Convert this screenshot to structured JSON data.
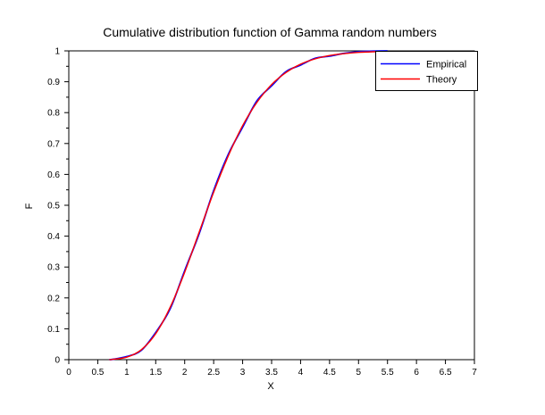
{
  "chart_data": {
    "type": "line",
    "title": "Cumulative distribution function of Gamma random numbers",
    "xlabel": "X",
    "ylabel": "F",
    "xlim": [
      0,
      7
    ],
    "ylim": [
      0,
      1
    ],
    "grid": false,
    "legend_position": "top-right",
    "axis_color": "#000000",
    "background_color": "#ffffff",
    "x_tick_values": [
      0,
      0.5,
      1,
      1.5,
      2,
      2.5,
      3,
      3.5,
      4,
      4.5,
      5,
      5.5,
      6,
      6.5,
      7
    ],
    "x_tick_labels": [
      "0",
      "0.5",
      "1",
      "1.5",
      "2",
      "2.5",
      "3",
      "3.5",
      "4",
      "4.5",
      "5",
      "5.5",
      "6",
      "6.5",
      "7"
    ],
    "y_tick_values": [
      0,
      0.1,
      0.2,
      0.3,
      0.4,
      0.5,
      0.6,
      0.7,
      0.8,
      0.9,
      1
    ],
    "y_tick_labels": [
      "0",
      "0.1",
      "0.2",
      "0.3",
      "0.4",
      "0.5",
      "0.6",
      "0.7",
      "0.8",
      "0.9",
      "1"
    ],
    "y_minor_tick_values": [
      0.05,
      0.15,
      0.25,
      0.35,
      0.45,
      0.55,
      0.65,
      0.75,
      0.85,
      0.95
    ],
    "x": [
      0.7,
      0.75,
      1.0,
      1.25,
      1.5,
      1.75,
      2.0,
      2.25,
      2.5,
      2.75,
      3.0,
      3.25,
      3.5,
      3.75,
      4.0,
      4.25,
      4.5,
      4.75,
      5.0,
      5.25,
      5.5
    ],
    "series": [
      {
        "name": "Empirical",
        "color": "#0000ff",
        "values": [
          0.0,
          0.001,
          0.01,
          0.03,
          0.088,
          0.165,
          0.288,
          0.408,
          0.547,
          0.664,
          0.753,
          0.839,
          0.887,
          0.933,
          0.954,
          0.976,
          0.983,
          0.992,
          0.997,
          0.999,
          1.0
        ]
      },
      {
        "name": "Theory",
        "color": "#ff0000",
        "values": [
          0.0,
          0.001,
          0.008,
          0.032,
          0.084,
          0.17,
          0.283,
          0.413,
          0.542,
          0.659,
          0.758,
          0.834,
          0.891,
          0.93,
          0.957,
          0.974,
          0.985,
          0.991,
          0.995,
          0.997,
          0.998
        ]
      }
    ]
  }
}
